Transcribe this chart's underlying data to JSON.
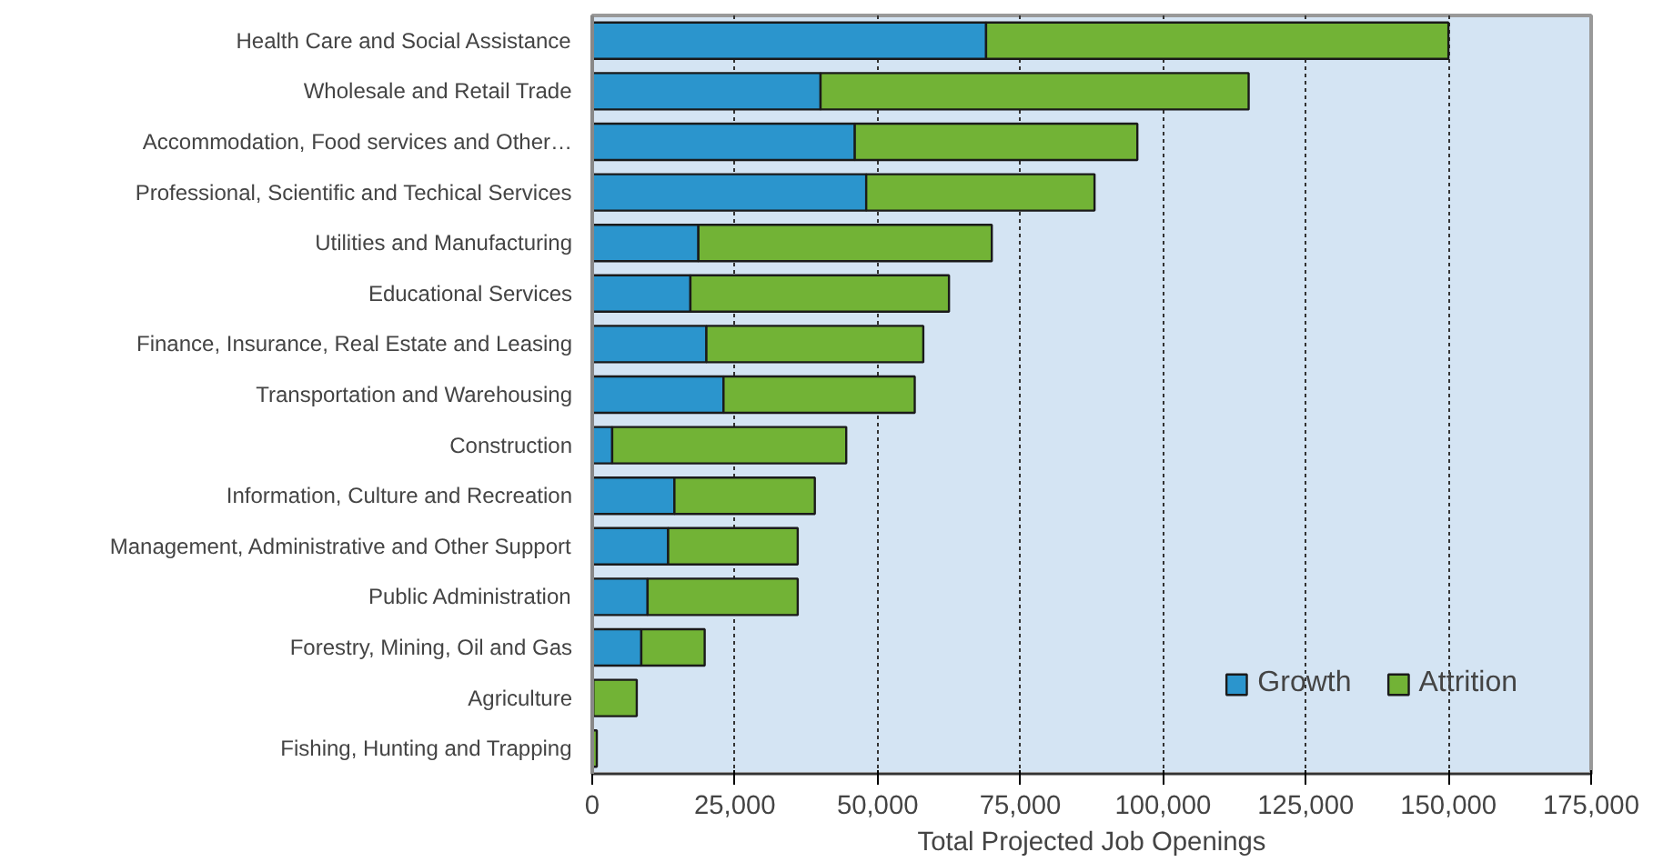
{
  "chart_data": {
    "type": "bar",
    "orientation": "horizontal",
    "stacked": true,
    "xlabel": "Total Projected Job Openings",
    "categories": [
      "Health Care and Social Assistance",
      "Wholesale and Retail Trade",
      "Accommodation, Food services and Other…",
      "Professional, Scientific and Techical Services",
      "Utilities and Manufacturing",
      "Educational Services",
      "Finance, Insurance, Real Estate and Leasing",
      "Transportation and Warehousing",
      "Construction",
      "Information, Culture and Recreation",
      "Management, Administrative and Other Support",
      "Public Administration",
      "Forestry, Mining, Oil and Gas",
      "Agriculture",
      "Fishing, Hunting and Trapping"
    ],
    "series": [
      {
        "name": "Growth",
        "color": "#2b95cd",
        "values": [
          69000,
          40000,
          46000,
          48000,
          18600,
          17200,
          20000,
          23000,
          3500,
          14400,
          13300,
          9700,
          8600,
          200,
          0
        ]
      },
      {
        "name": "Attrition",
        "color": "#72b336",
        "values": [
          81000,
          75000,
          49500,
          40000,
          51400,
          45300,
          38000,
          33500,
          41000,
          24600,
          22700,
          26300,
          11100,
          7600,
          800
        ]
      }
    ],
    "xlim": [
      0,
      175000
    ],
    "xticks": [
      0,
      {
        "value": 25000,
        "label": "25,000"
      },
      {
        "value": 50000,
        "label": "50,000"
      },
      {
        "value": 75000,
        "label": "75,000"
      },
      {
        "value": 100000,
        "label": "100,000"
      },
      {
        "value": 125000,
        "label": "125,000"
      },
      {
        "value": 150000,
        "label": "150,000"
      },
      {
        "value": 175000,
        "label": "175,000"
      }
    ],
    "grid": "x",
    "legend": "bottom right"
  }
}
